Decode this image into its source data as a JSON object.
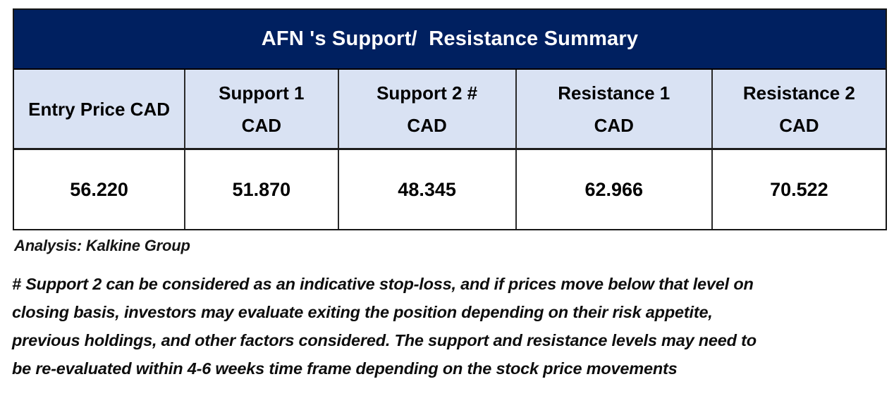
{
  "title": "AFN 's Support/  Resistance Summary",
  "table": {
    "columns": [
      {
        "label": "Entry Price CAD",
        "sub": ""
      },
      {
        "label": "Support 1",
        "sub": "CAD"
      },
      {
        "label": "Support 2 #",
        "sub": "CAD"
      },
      {
        "label": "Resistance 1",
        "sub": "CAD"
      },
      {
        "label": "Resistance 2",
        "sub": "CAD"
      }
    ],
    "values": [
      "56.220",
      "51.870",
      "48.345",
      "62.966",
      "70.522"
    ]
  },
  "source": "Analysis: Kalkine Group",
  "note": {
    "lines": [
      "# Support 2 can be considered as an indicative stop-loss, and if prices move below that level on",
      "closing basis, investors may evaluate exiting the position depending on their risk appetite,",
      "previous holdings, and other factors considered. The support and resistance levels may need to",
      "be re-evaluated within 4-6 weeks time frame depending on the stock price movements"
    ]
  },
  "colors": {
    "navy": "#002060",
    "header_bg": "#d9e2f3",
    "border": "#161616",
    "text": "#000000",
    "title_text": "#ffffff"
  }
}
